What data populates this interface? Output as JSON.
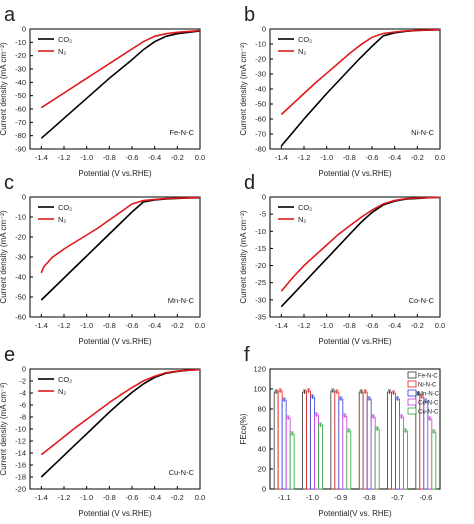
{
  "chart_data": [
    {
      "type": "line",
      "panel": "a",
      "sample": "Fe-N-C",
      "xlabel": "Potential (V vs.RHE)",
      "ylabel": "Current density (mA cm⁻²)",
      "xlim": [
        -1.5,
        0.0
      ],
      "ylim": [
        -90,
        0
      ],
      "xticks": [
        "-1.4",
        "-1.2",
        "-1.0",
        "-0.8",
        "-0.6",
        "-0.4",
        "-0.2",
        "0.0"
      ],
      "yticks": [
        "0",
        "-10",
        "-20",
        "-30",
        "-40",
        "-50",
        "-60",
        "-70",
        "-80",
        "-90"
      ],
      "series": [
        {
          "name": "CO₂",
          "color": "#000000",
          "x": [
            -1.4,
            -1.3,
            -1.2,
            -1.1,
            -1.0,
            -0.9,
            -0.8,
            -0.7,
            -0.6,
            -0.5,
            -0.4,
            -0.3,
            -0.2,
            -0.1,
            0.0
          ],
          "y": [
            -82,
            -74.5,
            -67,
            -59.5,
            -52,
            -44.5,
            -37,
            -30,
            -23,
            -15.5,
            -9.5,
            -5.5,
            -3.5,
            -2.5,
            -1.5
          ]
        },
        {
          "name": "N₂",
          "color": "#e0191b",
          "x": [
            -1.4,
            -1.3,
            -1.2,
            -1.1,
            -1.0,
            -0.9,
            -0.8,
            -0.7,
            -0.6,
            -0.5,
            -0.4,
            -0.3,
            -0.2,
            -0.1,
            0.0
          ],
          "y": [
            -59,
            -53.5,
            -48,
            -42.5,
            -37,
            -31.5,
            -26,
            -20.5,
            -15,
            -9.5,
            -5.5,
            -3.5,
            -2.5,
            -1.8,
            -1.2
          ]
        }
      ]
    },
    {
      "type": "line",
      "panel": "b",
      "sample": "Ni-N-C",
      "xlabel": "Potential (V vs.RHE)",
      "ylabel": "Current density (mA cm⁻²)",
      "xlim": [
        -1.5,
        0.0
      ],
      "ylim": [
        -80,
        0
      ],
      "xticks": [
        "-1.4",
        "-1.2",
        "-1.0",
        "-0.8",
        "-0.6",
        "-0.4",
        "-0.2",
        "0.0"
      ],
      "yticks": [
        "0",
        "-10",
        "-20",
        "-30",
        "-40",
        "-50",
        "-60",
        "-70",
        "-80"
      ],
      "series": [
        {
          "name": "CO₂",
          "color": "#000000",
          "x": [
            -1.4,
            -1.3,
            -1.2,
            -1.1,
            -1.0,
            -0.9,
            -0.8,
            -0.7,
            -0.6,
            -0.5,
            -0.4,
            -0.3,
            -0.2,
            -0.1,
            0.0
          ],
          "y": [
            -78,
            -69,
            -60,
            -51.5,
            -43,
            -35,
            -27,
            -19,
            -11.5,
            -4.5,
            -2.5,
            -1.5,
            -1.0,
            -0.7,
            -0.5
          ]
        },
        {
          "name": "N₂",
          "color": "#e0191b",
          "x": [
            -1.4,
            -1.3,
            -1.2,
            -1.1,
            -1.0,
            -0.9,
            -0.8,
            -0.7,
            -0.6,
            -0.5,
            -0.4,
            -0.3,
            -0.2,
            -0.1,
            0.0
          ],
          "y": [
            -57,
            -50,
            -43,
            -36,
            -29.5,
            -23,
            -16.5,
            -10.5,
            -5.5,
            -3,
            -2,
            -1.3,
            -0.9,
            -0.6,
            -0.4
          ]
        }
      ]
    },
    {
      "type": "line",
      "panel": "c",
      "sample": "Mn-N-C",
      "xlabel": "Potential (V vs.RHE)",
      "ylabel": "Current density (mA cm⁻²)",
      "xlim": [
        -1.5,
        0.0
      ],
      "ylim": [
        -60,
        0
      ],
      "xticks": [
        "-1.4",
        "-1.2",
        "-1.0",
        "-0.8",
        "-0.6",
        "-0.4",
        "-0.2",
        "0.0"
      ],
      "yticks": [
        "0",
        "-10",
        "-20",
        "-30",
        "-40",
        "-50",
        "-60"
      ],
      "series": [
        {
          "name": "CO₂",
          "color": "#000000",
          "x": [
            -1.4,
            -1.3,
            -1.2,
            -1.1,
            -1.0,
            -0.9,
            -0.8,
            -0.7,
            -0.6,
            -0.5,
            -0.4,
            -0.3,
            -0.2,
            -0.1,
            0.0
          ],
          "y": [
            -51.5,
            -46,
            -40.5,
            -35,
            -29.5,
            -24,
            -18.5,
            -13,
            -7.5,
            -2.5,
            -1.5,
            -1.0,
            -0.7,
            -0.5,
            -0.4
          ]
        },
        {
          "name": "N₂",
          "color": "#e0191b",
          "x": [
            -1.4,
            -1.38,
            -1.3,
            -1.2,
            -1.1,
            -1.0,
            -0.9,
            -0.8,
            -0.7,
            -0.6,
            -0.5,
            -0.4,
            -0.3,
            -0.2,
            -0.1,
            0.0
          ],
          "y": [
            -38,
            -35,
            -30,
            -26,
            -22.5,
            -19,
            -15.5,
            -11.5,
            -7.5,
            -3.5,
            -1.8,
            -1.2,
            -0.8,
            -0.6,
            -0.4,
            -0.3
          ]
        }
      ]
    },
    {
      "type": "line",
      "panel": "d",
      "sample": "Co-N-C",
      "xlabel": "Potential (V vs.RHE)",
      "ylabel": "Current density (mA cm⁻²)",
      "xlim": [
        -1.5,
        0.0
      ],
      "ylim": [
        -35,
        0
      ],
      "xticks": [
        "-1.4",
        "-1.2",
        "-1.0",
        "-0.8",
        "-0.6",
        "-0.4",
        "-0.2",
        "0.0"
      ],
      "yticks": [
        "0",
        "-5",
        "-10",
        "-15",
        "-20",
        "-25",
        "-30",
        "-35"
      ],
      "series": [
        {
          "name": "CO₂",
          "color": "#000000",
          "x": [
            -1.4,
            -1.3,
            -1.2,
            -1.1,
            -1.0,
            -0.9,
            -0.8,
            -0.7,
            -0.6,
            -0.5,
            -0.4,
            -0.3,
            -0.2,
            -0.1,
            0.0
          ],
          "y": [
            -32,
            -28.5,
            -25,
            -21.5,
            -18,
            -14.5,
            -11,
            -7.5,
            -4.5,
            -2.3,
            -1.2,
            -0.6,
            -0.4,
            -0.2,
            -0.1
          ]
        },
        {
          "name": "N₂",
          "color": "#e0191b",
          "x": [
            -1.4,
            -1.3,
            -1.2,
            -1.1,
            -1.0,
            -0.9,
            -0.8,
            -0.7,
            -0.6,
            -0.5,
            -0.4,
            -0.3,
            -0.2,
            -0.1,
            0.0
          ],
          "y": [
            -27.5,
            -23.5,
            -20,
            -17,
            -14,
            -11,
            -8.5,
            -6,
            -3.8,
            -2,
            -1.0,
            -0.5,
            -0.3,
            -0.2,
            -0.1
          ]
        }
      ]
    },
    {
      "type": "line",
      "panel": "e",
      "sample": "Cu-N-C",
      "xlabel": "Potential (V vs.RHE)",
      "ylabel": "Current density (mA cm⁻²)",
      "xlim": [
        -1.5,
        0.0
      ],
      "ylim": [
        -20,
        0
      ],
      "xticks": [
        "-1.4",
        "-1.2",
        "-1.0",
        "-0.8",
        "-0.6",
        "-0.4",
        "-0.2",
        "0.0"
      ],
      "yticks": [
        "0",
        "-2",
        "-4",
        "-6",
        "-8",
        "-10",
        "-12",
        "-14",
        "-16",
        "-18",
        "-20"
      ],
      "series": [
        {
          "name": "CO₂",
          "color": "#000000",
          "x": [
            -1.4,
            -1.3,
            -1.2,
            -1.1,
            -1.0,
            -0.9,
            -0.8,
            -0.7,
            -0.6,
            -0.5,
            -0.4,
            -0.3,
            -0.2,
            -0.1,
            0.0
          ],
          "y": [
            -18,
            -16.2,
            -14.4,
            -12.6,
            -10.8,
            -9.0,
            -7.2,
            -5.5,
            -3.9,
            -2.5,
            -1.4,
            -0.7,
            -0.4,
            -0.2,
            -0.1
          ]
        },
        {
          "name": "N₂",
          "color": "#e0191b",
          "x": [
            -1.4,
            -1.3,
            -1.2,
            -1.1,
            -1.0,
            -0.9,
            -0.8,
            -0.7,
            -0.6,
            -0.5,
            -0.4,
            -0.3,
            -0.2,
            -0.1,
            0.0
          ],
          "y": [
            -14.3,
            -12.8,
            -11.3,
            -9.8,
            -8.4,
            -7.0,
            -5.6,
            -4.3,
            -3.1,
            -2.0,
            -1.2,
            -0.6,
            -0.35,
            -0.2,
            -0.1
          ]
        }
      ]
    },
    {
      "type": "bar",
      "panel": "f",
      "xlabel": "Potential(V vs. RHE)",
      "ylabel": "FEco(%)",
      "ylim": [
        0,
        120
      ],
      "categories": [
        "-1.1",
        "-1.0",
        "-0.9",
        "-0.8",
        "-0.7",
        "-0.6"
      ],
      "yticks": [
        "0",
        "20",
        "40",
        "60",
        "80",
        "100",
        "120"
      ],
      "series": [
        {
          "name": "Fe-N-C",
          "color": "#333333",
          "values": [
            97,
            97,
            98,
            97,
            97,
            95
          ],
          "errors": [
            2,
            2,
            2,
            2,
            2,
            2
          ]
        },
        {
          "name": "Ni-N-C",
          "color": "#e0191b",
          "values": [
            98,
            98,
            97,
            97,
            96,
            92
          ],
          "errors": [
            2,
            2,
            2,
            2,
            2,
            2
          ]
        },
        {
          "name": "Mn-N-C",
          "color": "#2e3fd6",
          "values": [
            89,
            92,
            90,
            90,
            90,
            88
          ],
          "errors": [
            2,
            2,
            2,
            2,
            2,
            2
          ]
        },
        {
          "name": "Co-N-C",
          "color": "#c236d6",
          "values": [
            71,
            74,
            73,
            72,
            72,
            70
          ],
          "errors": [
            2,
            2,
            2,
            2,
            2,
            2
          ]
        },
        {
          "name": "Cu-N-C",
          "color": "#2fa13a",
          "values": [
            55,
            64,
            58,
            60,
            58,
            57
          ],
          "errors": [
            2,
            2,
            2,
            2,
            2,
            2
          ]
        }
      ]
    }
  ]
}
